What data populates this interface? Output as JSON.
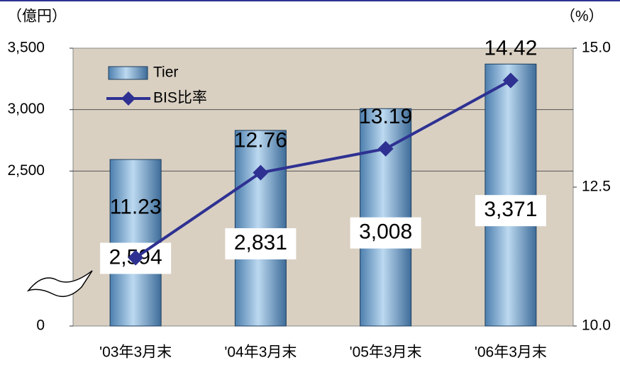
{
  "chart_data": {
    "type": "bar_line",
    "y_unit": "（億円）",
    "y2_unit": "（%）",
    "categories": [
      "'03年3月末",
      "'04年3月末",
      "'05年3月末",
      "'06年3月末"
    ],
    "series": [
      {
        "name": "Tier",
        "type": "bar",
        "color": "#6fa3cf",
        "values": [
          2594,
          2831,
          3008,
          3371
        ],
        "value_labels": [
          "2,594",
          "2,831",
          "3,008",
          "3,371"
        ]
      },
      {
        "name": "BIS比率",
        "type": "line",
        "axis": "y2",
        "color": "#2e3192",
        "values": [
          11.23,
          12.76,
          13.19,
          14.42
        ]
      }
    ],
    "ylim": [
      0,
      3500
    ],
    "y_break": [
      0,
      2000
    ],
    "yticks": [
      0,
      {
        "value": 2500,
        "label": "2,500"
      },
      {
        "value": 3000,
        "label": "3,000"
      },
      {
        "value": 3500,
        "label": "3,500"
      }
    ],
    "y2lim": [
      10,
      15
    ],
    "y2ticks": [
      {
        "value": 10,
        "label": "10.0"
      },
      12.5,
      {
        "value": 15,
        "label": "15.0"
      }
    ],
    "grid": true,
    "legend": "top-left"
  }
}
